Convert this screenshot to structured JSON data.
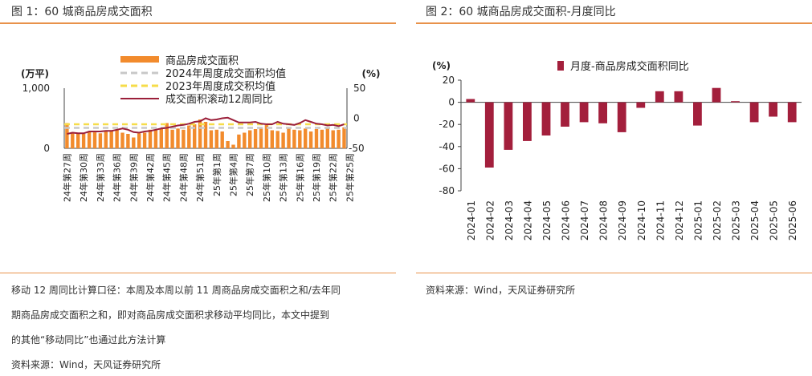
{
  "left": {
    "title": "图 1：60 城商品房成交面积",
    "note_lines": [
      "移动 12 周同比计算口径：本周及本周以前 11 周商品房成交面积之和/去年同",
      "期商品房成交面积之和，即对商品房成交面积求移动平均同比，本文中提到",
      "的其他“移动同比”也通过此方法计算"
    ],
    "source": "资料来源：Wind，天风证券研究所"
  },
  "right": {
    "title": "图 2：60 城商品房成交面积-月度同比",
    "source": "资料来源：Wind，天风证券研究所"
  },
  "chart_data": [
    {
      "type": "bar",
      "left_axis_unit": "(万平)",
      "right_axis_unit": "(%)",
      "left_ylim": [
        0,
        1000
      ],
      "left_ticks": [
        "1,000",
        "0"
      ],
      "right_ylim": [
        -50,
        50
      ],
      "right_ticks": [
        "50",
        "0",
        "-50"
      ],
      "categories": [
        "24年第27周",
        "24年第28周",
        "24年第29周",
        "24年第30周",
        "24年第31周",
        "24年第32周",
        "24年第33周",
        "24年第34周",
        "24年第35周",
        "24年第36周",
        "24年第37周",
        "24年第38周",
        "24年第39周",
        "24年第40周",
        "24年第41周",
        "24年第42周",
        "24年第43周",
        "24年第44周",
        "24年第45周",
        "24年第46周",
        "24年第47周",
        "24年第48周",
        "24年第49周",
        "24年第50周",
        "24年第51周",
        "24年第52周",
        "25年第1周",
        "25年第2周",
        "25年第3周",
        "25年第4周",
        "25年第5周",
        "25年第6周",
        "25年第7周",
        "25年第8周",
        "25年第9周",
        "25年第10周",
        "25年第11周",
        "25年第12周",
        "25年第13周",
        "25年第14周",
        "25年第15周",
        "25年第16周",
        "25年第17周",
        "25年第18周",
        "25年第19周",
        "25年第20周",
        "25年第21周",
        "25年第22周",
        "25年第23周",
        "25年第24周",
        "25年第25周"
      ],
      "xtick_labels": [
        "24年第27周",
        "24年第30周",
        "24年第33周",
        "24年第36周",
        "24年第39周",
        "24年第42周",
        "24年第45周",
        "24年第48周",
        "24年第51周",
        "25年第1周",
        "25年第4周",
        "25年第7周",
        "25年第10周",
        "25年第13周",
        "25年第16周",
        "25年第19周",
        "25年第22周",
        "25年第25周"
      ],
      "series": [
        {
          "name": "商品房成交面积",
          "kind": "bar",
          "axis": "left",
          "color": "#f28b2d",
          "values": [
            420,
            270,
            260,
            240,
            270,
            265,
            250,
            280,
            300,
            310,
            260,
            240,
            180,
            250,
            260,
            310,
            300,
            330,
            420,
            310,
            330,
            310,
            380,
            400,
            480,
            440,
            300,
            310,
            280,
            120,
            60,
            230,
            260,
            300,
            320,
            350,
            390,
            300,
            290,
            260,
            330,
            310,
            300,
            330,
            280,
            320,
            310,
            350,
            300,
            310,
            350
          ]
        },
        {
          "name": "2024年周度成交面积均值",
          "kind": "hline",
          "axis": "left",
          "color": "#c8c8c8",
          "value": 340
        },
        {
          "name": "2023年周度成交积均值",
          "kind": "hline",
          "axis": "left",
          "color": "#f6dc4a",
          "value": 400
        },
        {
          "name": "成交面积滚动12周同比",
          "kind": "line",
          "axis": "right",
          "color": "#9b1f3a",
          "values": [
            -26,
            -24,
            -25,
            -25,
            -22,
            -22,
            -22,
            -21,
            -21,
            -19,
            -17,
            -19,
            -23,
            -24,
            -22,
            -21,
            -19,
            -17,
            -16,
            -14,
            -12,
            -11,
            -9,
            -6,
            -5,
            0,
            -3,
            -2,
            0,
            1,
            -3,
            -7,
            -7,
            -7,
            -6,
            -9,
            -10,
            -10,
            -6,
            -9,
            -10,
            -11,
            -8,
            -3,
            -6,
            -9,
            -10,
            -12,
            -11,
            -13,
            -10
          ]
        }
      ]
    },
    {
      "type": "bar",
      "ylabel_unit": "(%)",
      "ylim": [
        -80,
        20
      ],
      "yticks": [
        20,
        0,
        -20,
        -40,
        -60,
        -80
      ],
      "legend": "月度-商品房成交面积同比",
      "legend_position": "top",
      "color": "#a31f3c",
      "categories": [
        "2024-01",
        "2024-02",
        "2024-03",
        "2024-04",
        "2024-05",
        "2024-06",
        "2024-07",
        "2024-08",
        "2024-09",
        "2024-10",
        "2024-11",
        "2024-12",
        "2025-01",
        "2025-02",
        "2025-03",
        "2025-04",
        "2025-05",
        "2025-06"
      ],
      "values": [
        3,
        -59,
        -43,
        -35,
        -30,
        -22,
        -18,
        -19,
        -27,
        -5,
        10,
        10,
        -21,
        13,
        1,
        -18,
        -13,
        -18
      ]
    }
  ]
}
